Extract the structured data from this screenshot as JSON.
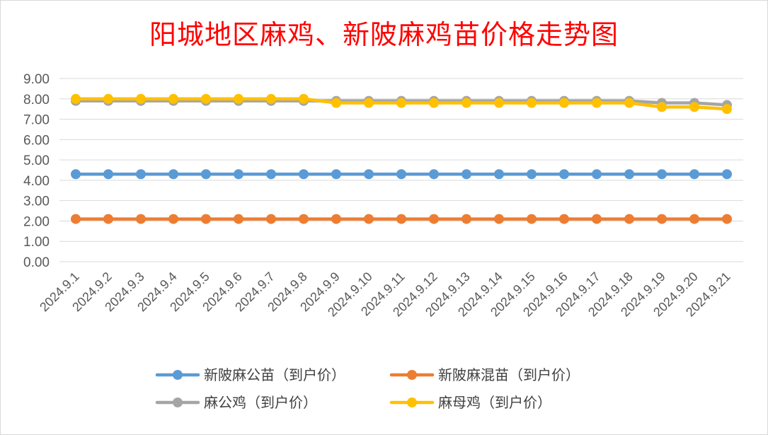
{
  "chart_data": {
    "type": "line",
    "title": "阳城地区麻鸡、新陂麻鸡苗价格走势图",
    "xlabel": "",
    "ylabel": "",
    "ylim": [
      0,
      9
    ],
    "yticks": [
      "0.00",
      "1.00",
      "2.00",
      "3.00",
      "4.00",
      "5.00",
      "6.00",
      "7.00",
      "8.00",
      "9.00"
    ],
    "grid": true,
    "legend_position": "bottom",
    "categories": [
      "2024.9.1",
      "2024.9.2",
      "2024.9.3",
      "2024.9.4",
      "2024.9.5",
      "2024.9.6",
      "2024.9.7",
      "2024.9.8",
      "2024.9.9",
      "2024.9.10",
      "2024.9.11",
      "2024.9.12",
      "2024.9.13",
      "2024.9.14",
      "2024.9.15",
      "2024.9.16",
      "2024.9.17",
      "2024.9.18",
      "2024.9.19",
      "2024.9.20",
      "2024.9.21"
    ],
    "series": [
      {
        "name": "新陂麻公苗（到户价）",
        "color": "#5b9bd5",
        "values": [
          4.3,
          4.3,
          4.3,
          4.3,
          4.3,
          4.3,
          4.3,
          4.3,
          4.3,
          4.3,
          4.3,
          4.3,
          4.3,
          4.3,
          4.3,
          4.3,
          4.3,
          4.3,
          4.3,
          4.3,
          4.3
        ]
      },
      {
        "name": "新陂麻混苗（到户价）",
        "color": "#ed7d31",
        "values": [
          2.1,
          2.1,
          2.1,
          2.1,
          2.1,
          2.1,
          2.1,
          2.1,
          2.1,
          2.1,
          2.1,
          2.1,
          2.1,
          2.1,
          2.1,
          2.1,
          2.1,
          2.1,
          2.1,
          2.1,
          2.1
        ]
      },
      {
        "name": "麻公鸡（到户价）",
        "color": "#a5a5a5",
        "values": [
          7.9,
          7.9,
          7.9,
          7.9,
          7.9,
          7.9,
          7.9,
          7.9,
          7.9,
          7.9,
          7.9,
          7.9,
          7.9,
          7.9,
          7.9,
          7.9,
          7.9,
          7.9,
          7.8,
          7.8,
          7.7
        ]
      },
      {
        "name": "麻母鸡（到户价）",
        "color": "#ffc000",
        "values": [
          8.0,
          8.0,
          8.0,
          8.0,
          8.0,
          8.0,
          8.0,
          8.0,
          7.8,
          7.8,
          7.8,
          7.8,
          7.8,
          7.8,
          7.8,
          7.8,
          7.8,
          7.8,
          7.6,
          7.6,
          7.5
        ]
      }
    ]
  }
}
